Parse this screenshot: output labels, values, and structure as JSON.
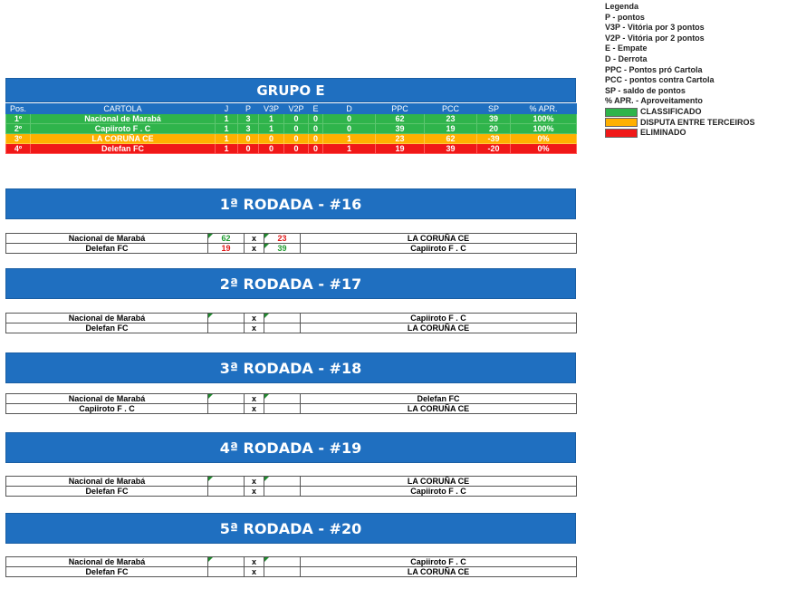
{
  "legend": {
    "title": "Legenda",
    "items": [
      "P - pontos",
      "V3P - Vitória por 3 pontos",
      "V2P - Vitória por 2 pontos",
      "E - Empate",
      "D - Derrota",
      "PPC - Pontos pró Cartola",
      "PCC - pontos contra Cartola",
      "SP - saldo de pontos",
      "% APR. - Aproveitamento"
    ],
    "status": [
      {
        "label": "CLASSIFICADO",
        "color": "#2fb44b"
      },
      {
        "label": "DISPUTA ENTRE TERCEIROS",
        "color": "#ffb000"
      },
      {
        "label": "ELIMINADO",
        "color": "#f01818"
      }
    ]
  },
  "group": {
    "title": "GRUPO E",
    "headers": [
      "Pos.",
      "CARTOLA",
      "J",
      "P",
      "V3P",
      "V2P",
      "E",
      "D",
      "PPC",
      "PCC",
      "SP",
      "% APR."
    ],
    "rows": [
      {
        "status": "green",
        "cells": [
          "1º",
          "Nacional de Marabá",
          "1",
          "3",
          "1",
          "0",
          "0",
          "0",
          "62",
          "23",
          "39",
          "100%"
        ]
      },
      {
        "status": "green",
        "cells": [
          "2º",
          "Capiiroto F . C",
          "1",
          "3",
          "1",
          "0",
          "0",
          "0",
          "39",
          "19",
          "20",
          "100%"
        ]
      },
      {
        "status": "orange",
        "cells": [
          "3º",
          "LA CORUÑA CE",
          "1",
          "0",
          "0",
          "0",
          "0",
          "1",
          "23",
          "62",
          "-39",
          "0%"
        ]
      },
      {
        "status": "red",
        "cells": [
          "4º",
          "Delefan FC",
          "1",
          "0",
          "0",
          "0",
          "0",
          "1",
          "19",
          "39",
          "-20",
          "0%"
        ]
      }
    ]
  },
  "rounds": [
    {
      "title": "1ª RODADA - #16",
      "matches": [
        {
          "home": "Nacional de Marabá",
          "hs": "62",
          "hc": "g",
          "vs": "x",
          "as": "23",
          "ac": "r",
          "away": "LA CORUÑA CE"
        },
        {
          "home": "Delefan FC",
          "hs": "19",
          "hc": "r",
          "vs": "x",
          "as": "39",
          "ac": "g",
          "away": "Capiiroto F . C"
        }
      ]
    },
    {
      "title": "2ª RODADA - #17",
      "matches": [
        {
          "home": "Nacional de Marabá",
          "hs": "",
          "vs": "x",
          "as": "",
          "away": "Capiiroto F . C"
        },
        {
          "home": "Delefan FC",
          "hs": "",
          "vs": "x",
          "as": "",
          "away": "LA CORUÑA CE"
        }
      ]
    },
    {
      "title": "3ª RODADA - #18",
      "matches": [
        {
          "home": "Nacional de Marabá",
          "hs": "",
          "vs": "x",
          "as": "",
          "away": "Delefan FC"
        },
        {
          "home": "Capiiroto F . C",
          "hs": "",
          "vs": "x",
          "as": "",
          "away": "LA CORUÑA CE"
        }
      ]
    },
    {
      "title": "4ª RODADA - #19",
      "matches": [
        {
          "home": "Nacional de Marabá",
          "hs": "",
          "vs": "x",
          "as": "",
          "away": "LA CORUÑA CE"
        },
        {
          "home": "Delefan FC",
          "hs": "",
          "vs": "x",
          "as": "",
          "away": "Capiiroto F . C"
        }
      ]
    },
    {
      "title": "5ª RODADA - #20",
      "matches": [
        {
          "home": "Nacional de Marabá",
          "hs": "",
          "vs": "x",
          "as": "",
          "away": "Capiiroto F . C"
        },
        {
          "home": "Delefan FC",
          "hs": "",
          "vs": "x",
          "as": "",
          "away": "LA CORUÑA CE"
        }
      ]
    }
  ]
}
